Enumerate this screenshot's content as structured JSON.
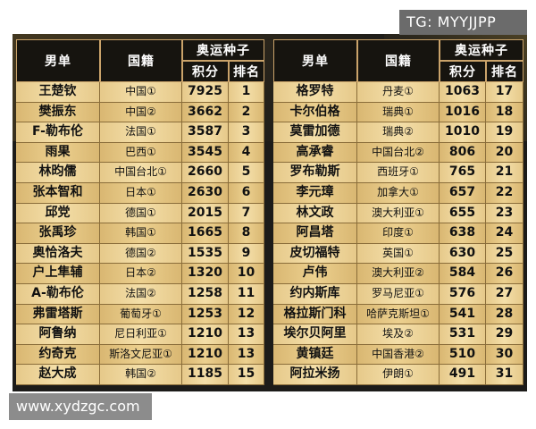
{
  "watermark_tg": "TG: MYYJJPP",
  "watermark_url": "www.xydzgc.com",
  "headers": {
    "player": "男单",
    "nationality": "国籍",
    "olympic_seed": "奥运种子",
    "points": "积分",
    "rank": "排名"
  },
  "left": [
    {
      "name": "王楚钦",
      "country": "中国①",
      "points": "7925",
      "rank": "1"
    },
    {
      "name": "樊振东",
      "country": "中国②",
      "points": "3662",
      "rank": "2"
    },
    {
      "name": "F-勒布伦",
      "country": "法国①",
      "points": "3587",
      "rank": "3"
    },
    {
      "name": "雨果",
      "country": "巴西①",
      "points": "3545",
      "rank": "4"
    },
    {
      "name": "林昀儒",
      "country": "中国台北①",
      "points": "2660",
      "rank": "5"
    },
    {
      "name": "张本智和",
      "country": "日本①",
      "points": "2630",
      "rank": "6"
    },
    {
      "name": "邱党",
      "country": "德国①",
      "points": "2015",
      "rank": "7"
    },
    {
      "name": "张禹珍",
      "country": "韩国①",
      "points": "1665",
      "rank": "8"
    },
    {
      "name": "奥恰洛夫",
      "country": "德国②",
      "points": "1535",
      "rank": "9"
    },
    {
      "name": "户上隼辅",
      "country": "日本②",
      "points": "1320",
      "rank": "10"
    },
    {
      "name": "A-勒布伦",
      "country": "法国②",
      "points": "1258",
      "rank": "11"
    },
    {
      "name": "弗雷塔斯",
      "country": "葡萄牙①",
      "points": "1253",
      "rank": "12"
    },
    {
      "name": "阿鲁纳",
      "country": "尼日利亚①",
      "points": "1210",
      "rank": "13"
    },
    {
      "name": "约奇克",
      "country": "斯洛文尼亚①",
      "points": "1210",
      "rank": "13"
    },
    {
      "name": "赵大成",
      "country": "韩国②",
      "points": "1185",
      "rank": "15"
    }
  ],
  "right": [
    {
      "name": "格罗特",
      "country": "丹麦①",
      "points": "1063",
      "rank": "17"
    },
    {
      "name": "卡尔伯格",
      "country": "瑞典①",
      "points": "1016",
      "rank": "18"
    },
    {
      "name": "莫雷加德",
      "country": "瑞典②",
      "points": "1010",
      "rank": "19"
    },
    {
      "name": "高承睿",
      "country": "中国台北②",
      "points": "806",
      "rank": "20"
    },
    {
      "name": "罗布勒斯",
      "country": "西班牙①",
      "points": "765",
      "rank": "21"
    },
    {
      "name": "李元璋",
      "country": "加拿大①",
      "points": "657",
      "rank": "22"
    },
    {
      "name": "林文政",
      "country": "澳大利亚①",
      "points": "655",
      "rank": "23"
    },
    {
      "name": "阿昌塔",
      "country": "印度①",
      "points": "638",
      "rank": "24"
    },
    {
      "name": "皮切福特",
      "country": "英国①",
      "points": "630",
      "rank": "25"
    },
    {
      "name": "卢伟",
      "country": "澳大利亚②",
      "points": "584",
      "rank": "26"
    },
    {
      "name": "约内斯库",
      "country": "罗马尼亚①",
      "points": "576",
      "rank": "27"
    },
    {
      "name": "格拉斯门科",
      "country": "哈萨克斯坦①",
      "points": "541",
      "rank": "28"
    },
    {
      "name": "埃尔贝阿里",
      "country": "埃及②",
      "points": "531",
      "rank": "29"
    },
    {
      "name": "黄镇廷",
      "country": "中国香港②",
      "points": "510",
      "rank": "30"
    },
    {
      "name": "阿拉米扬",
      "country": "伊朗①",
      "points": "491",
      "rank": "31"
    }
  ]
}
